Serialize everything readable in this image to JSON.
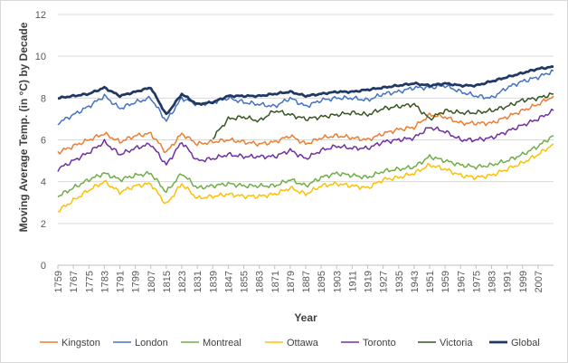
{
  "chart_data": {
    "type": "line",
    "title": "",
    "xlabel": "Year",
    "ylabel": "Moving Average Temp. (in °C) by Decade",
    "xlim": [
      1759,
      2015
    ],
    "ylim": [
      0,
      12
    ],
    "y_ticks": [
      0,
      2,
      4,
      6,
      8,
      10,
      12
    ],
    "x_ticks": [
      1759,
      1767,
      1775,
      1783,
      1791,
      1799,
      1807,
      1815,
      1823,
      1831,
      1839,
      1847,
      1855,
      1863,
      1871,
      1879,
      1887,
      1895,
      1903,
      1911,
      1919,
      1927,
      1935,
      1943,
      1951,
      1959,
      1967,
      1975,
      1983,
      1991,
      1999,
      2007
    ],
    "grid": "horizontal",
    "legend_position": "bottom",
    "x": [
      1759,
      1767,
      1775,
      1783,
      1791,
      1799,
      1807,
      1815,
      1823,
      1831,
      1839,
      1847,
      1855,
      1863,
      1871,
      1879,
      1887,
      1895,
      1903,
      1911,
      1919,
      1927,
      1935,
      1943,
      1951,
      1959,
      1967,
      1975,
      1983,
      1991,
      1999,
      2007,
      2015
    ],
    "series": [
      {
        "name": "Kingston",
        "color": "#ed7d31",
        "width": 1.5,
        "values": [
          5.4,
          5.7,
          6.0,
          6.3,
          5.9,
          6.2,
          6.3,
          5.4,
          6.3,
          5.8,
          5.9,
          6.0,
          5.9,
          5.8,
          5.9,
          6.2,
          5.8,
          6.1,
          6.2,
          6.1,
          6.0,
          6.3,
          6.5,
          6.6,
          7.2,
          7.1,
          6.8,
          6.8,
          6.8,
          7.1,
          7.4,
          7.7,
          8.1
        ]
      },
      {
        "name": "London",
        "color": "#4472c4",
        "width": 1.5,
        "values": [
          6.8,
          7.2,
          7.6,
          8.1,
          7.5,
          7.8,
          8.0,
          6.9,
          8.0,
          7.7,
          7.8,
          8.0,
          7.8,
          7.7,
          7.6,
          8.0,
          7.6,
          7.9,
          8.0,
          8.0,
          7.9,
          8.2,
          8.3,
          8.5,
          8.5,
          8.6,
          8.3,
          8.1,
          8.0,
          8.5,
          8.8,
          9.0,
          9.3
        ]
      },
      {
        "name": "Montreal",
        "color": "#70ad47",
        "width": 1.5,
        "values": [
          3.3,
          3.7,
          4.1,
          4.4,
          4.1,
          4.3,
          4.4,
          3.5,
          4.4,
          3.7,
          3.8,
          3.9,
          3.8,
          3.8,
          3.8,
          4.1,
          3.8,
          4.2,
          4.4,
          4.3,
          4.2,
          4.5,
          4.6,
          4.7,
          5.2,
          5.0,
          4.8,
          4.7,
          4.8,
          5.0,
          5.3,
          5.7,
          6.2
        ]
      },
      {
        "name": "Ottawa",
        "color": "#ffc000",
        "width": 1.5,
        "values": [
          2.6,
          3.1,
          3.6,
          4.0,
          3.5,
          3.8,
          3.9,
          2.9,
          3.9,
          3.2,
          3.3,
          3.4,
          3.3,
          3.3,
          3.4,
          3.7,
          3.4,
          3.8,
          3.9,
          3.8,
          3.7,
          4.1,
          4.2,
          4.4,
          4.8,
          4.6,
          4.3,
          4.2,
          4.3,
          4.6,
          4.9,
          5.3,
          5.8
        ]
      },
      {
        "name": "Toronto",
        "color": "#7030a0",
        "width": 1.5,
        "values": [
          4.6,
          5.0,
          5.4,
          5.9,
          5.3,
          5.6,
          5.8,
          4.8,
          5.9,
          5.0,
          5.1,
          5.3,
          5.2,
          5.2,
          5.2,
          5.5,
          5.1,
          5.5,
          5.7,
          5.6,
          5.6,
          5.9,
          6.0,
          6.1,
          6.6,
          6.4,
          6.0,
          6.0,
          6.1,
          6.4,
          6.7,
          7.0,
          7.4
        ]
      },
      {
        "name": "Victoria",
        "color": "#375623",
        "width": 1.5,
        "start": 10,
        "values": [
          null,
          null,
          null,
          null,
          null,
          null,
          null,
          null,
          null,
          null,
          6.1,
          7.0,
          7.1,
          6.9,
          7.4,
          7.2,
          7.0,
          7.1,
          7.2,
          7.3,
          7.2,
          7.5,
          7.6,
          7.7,
          7.0,
          7.4,
          7.3,
          7.3,
          7.4,
          7.6,
          7.9,
          8.0,
          8.2
        ]
      },
      {
        "name": "Global",
        "color": "#203864",
        "width": 2.75,
        "values": [
          8.0,
          8.1,
          8.2,
          8.5,
          8.1,
          8.3,
          8.5,
          7.2,
          8.2,
          7.7,
          7.8,
          8.1,
          8.1,
          8.1,
          8.2,
          8.3,
          8.1,
          8.2,
          8.3,
          8.3,
          8.4,
          8.5,
          8.6,
          8.7,
          8.6,
          8.7,
          8.6,
          8.6,
          8.8,
          9.0,
          9.2,
          9.4,
          9.5
        ]
      }
    ]
  }
}
